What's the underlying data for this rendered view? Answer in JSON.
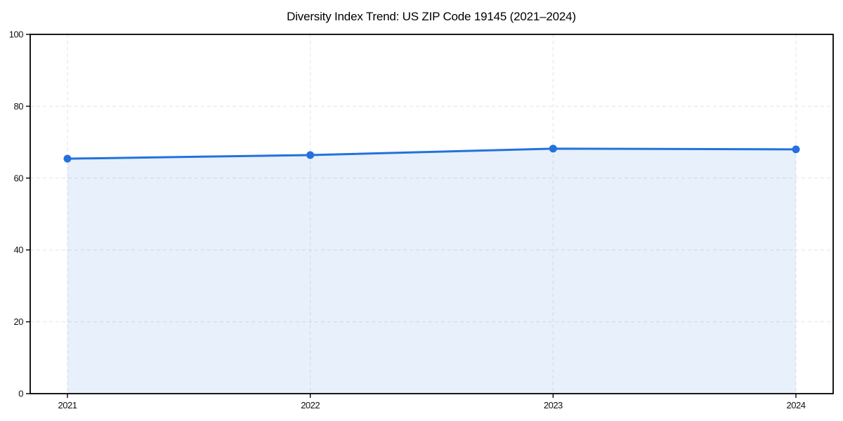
{
  "figure": {
    "background_color": "#ffffff",
    "text_color": "#111111",
    "spine_color": "#000000",
    "grid_color": "#e3e3e3"
  },
  "chart_data": {
    "type": "area",
    "title": "Diversity Index Trend: US ZIP Code 19145 (2021–2024)",
    "series_name": "Diversity Index",
    "x": [
      2021,
      2022,
      2023,
      2024
    ],
    "xtick_labels": [
      "2021",
      "2022",
      "2023",
      "2024"
    ],
    "values": [
      65.4,
      66.4,
      68.2,
      68.0
    ],
    "xlabel": "",
    "ylabel": "",
    "ylim": [
      0,
      100
    ],
    "yticks": [
      0,
      20,
      40,
      60,
      80,
      100
    ],
    "grid": true,
    "grid_style": "dashed",
    "legend": false,
    "line_color": "#2272dd",
    "marker": "circle",
    "marker_color": "#2272dd",
    "fill_color": "#2272dd",
    "fill_opacity": 0.11
  }
}
